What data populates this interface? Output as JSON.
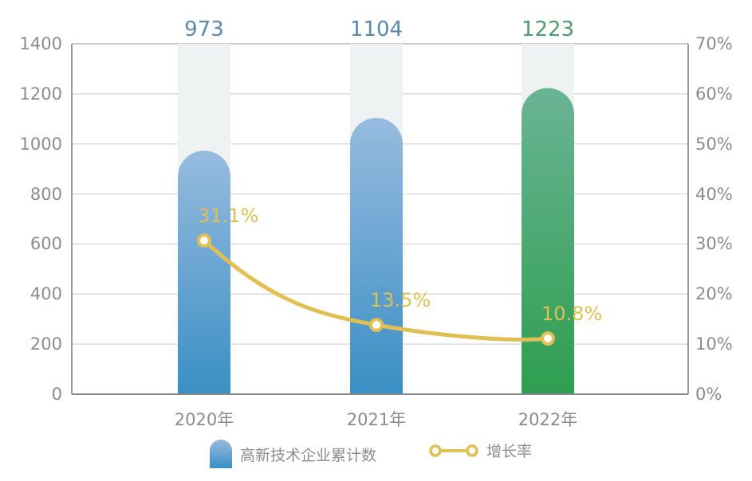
{
  "chart_data": {
    "type": "bar+line",
    "categories": [
      "2020年",
      "2021年",
      "2022年"
    ],
    "series": [
      {
        "name": "高新技术企业累计数",
        "type": "bar",
        "axis": "left",
        "values": [
          973,
          1104,
          1223
        ],
        "colors": [
          "#3a8fc4",
          "#3a8fc4",
          "#33a055"
        ]
      },
      {
        "name": "增长率",
        "type": "line",
        "axis": "right",
        "values": [
          31.1,
          13.5,
          10.8
        ],
        "labels": [
          "31.1%",
          "13.5%",
          "10.8%"
        ],
        "color": "#e0bf55"
      }
    ],
    "left_axis": {
      "ylim": [
        0,
        1400
      ],
      "ticks": [
        "0",
        "200",
        "400",
        "600",
        "800",
        "1000",
        "1200",
        "1400"
      ]
    },
    "right_axis": {
      "ylim": [
        0,
        70
      ],
      "ticks": [
        "0%",
        "10%",
        "20%",
        "30%",
        "40%",
        "50%",
        "60%",
        "70%"
      ]
    },
    "bar_top_labels": [
      "973",
      "1104",
      "1223"
    ],
    "grid": true,
    "legend_position": "bottom"
  },
  "legend": {
    "bar_label": "高新技术企业累计数",
    "line_label": "增长率"
  },
  "colors": {
    "bar_blue_top": "#97bbdf",
    "bar_blue_bottom": "#3a8fc4",
    "bar_green_top": "#6ab494",
    "bar_green_bottom": "#2e9e4f",
    "line": "#e0bf55",
    "label_blue": "#5a88ad",
    "label_green": "#4f9a6e",
    "axis_text": "#8c8c8c",
    "grid": "#dcdcdc",
    "bar_bg": "#eef2f3"
  }
}
